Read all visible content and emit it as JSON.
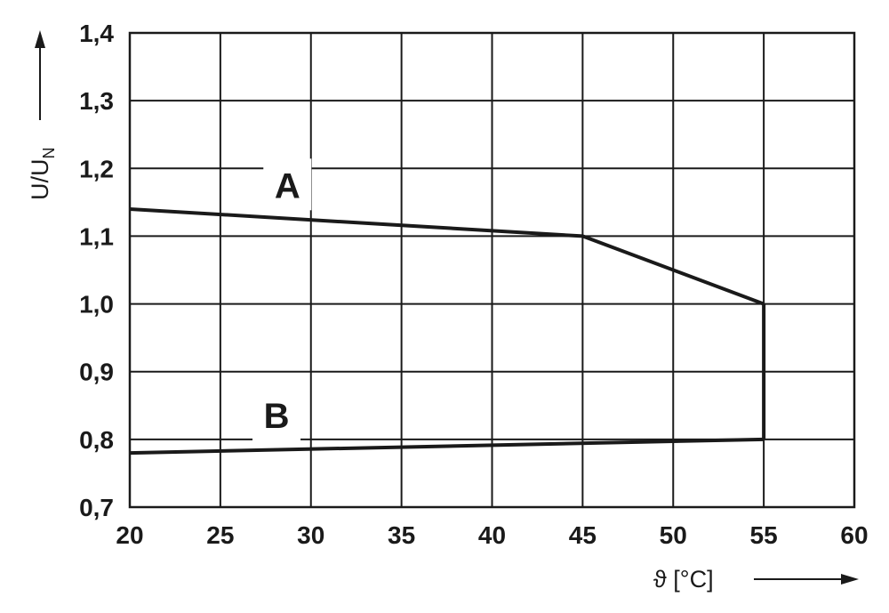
{
  "chart_data": {
    "type": "line",
    "title": "",
    "xlabel": "ϑ [°C]",
    "ylabel_main": "U/U",
    "ylabel_sub": "N",
    "xlim": [
      20,
      60
    ],
    "ylim": [
      0.7,
      1.4
    ],
    "xticks": [
      20,
      25,
      30,
      35,
      40,
      45,
      50,
      55,
      60
    ],
    "yticks": [
      0.7,
      0.8,
      0.9,
      1.0,
      1.1,
      1.2,
      1.3,
      1.4
    ],
    "xtick_labels": [
      "20",
      "25",
      "30",
      "35",
      "40",
      "45",
      "50",
      "55",
      "60"
    ],
    "ytick_labels": [
      "0,7",
      "0,8",
      "0,9",
      "1,0",
      "1,1",
      "1,2",
      "1,3",
      "1,4"
    ],
    "grid": true,
    "series": [
      {
        "name": "A",
        "x": [
          20,
          45,
          55
        ],
        "y": [
          1.14,
          1.1,
          1.0
        ]
      },
      {
        "name": "B",
        "x": [
          20,
          55
        ],
        "y": [
          0.78,
          0.8
        ]
      }
    ],
    "connector": {
      "x": [
        55,
        55
      ],
      "y": [
        1.0,
        0.8
      ]
    },
    "annotations": [
      {
        "text": "A",
        "x": 28.7,
        "y": 1.175
      },
      {
        "text": "B",
        "x": 28.1,
        "y": 0.835
      }
    ]
  }
}
